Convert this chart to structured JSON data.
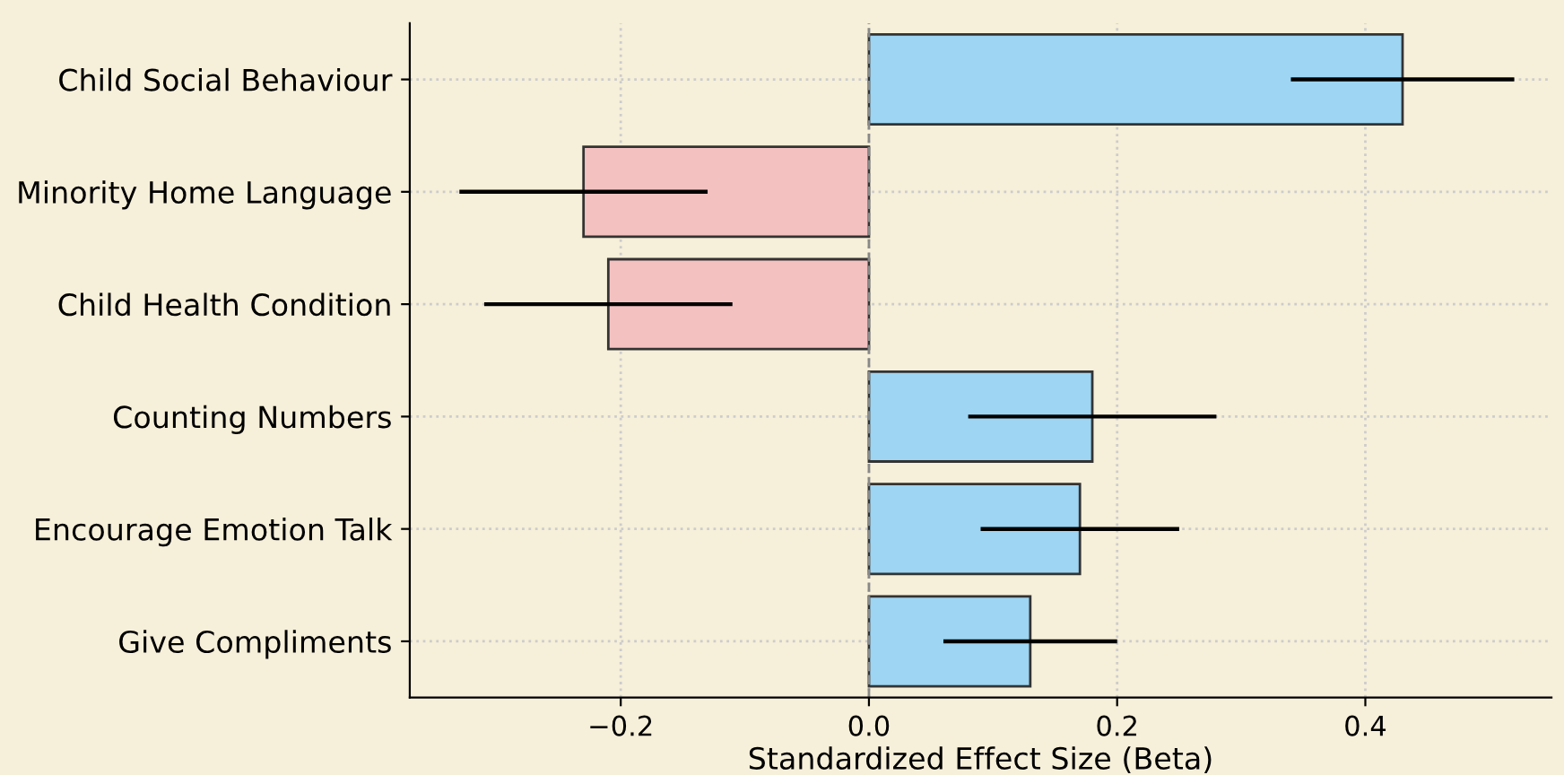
{
  "chart_data": {
    "type": "bar",
    "orientation": "horizontal",
    "xlabel": "Standardized Effect Size (Beta)",
    "categories": [
      "Child Social Behaviour",
      "Minority Home Language",
      "Child Health Condition",
      "Counting Numbers",
      "Encourage Emotion Talk",
      "Give Compliments"
    ],
    "values": [
      0.43,
      -0.23,
      -0.21,
      0.18,
      0.17,
      0.13
    ],
    "errors": [
      [
        0.34,
        0.52
      ],
      [
        -0.33,
        -0.13
      ],
      [
        -0.31,
        -0.11
      ],
      [
        0.08,
        0.28
      ],
      [
        0.09,
        0.25
      ],
      [
        0.06,
        0.2
      ]
    ],
    "colors": [
      "#9dd5f2",
      "#f4c1c1",
      "#f4c1c1",
      "#9dd5f2",
      "#9dd5f2",
      "#9dd5f2"
    ],
    "xlim": [
      -0.37,
      0.55
    ],
    "xticks": [
      {
        "value": -0.2,
        "label": "−0.2"
      },
      {
        "value": 0.0,
        "label": "0.0"
      },
      {
        "value": 0.2,
        "label": "0.2"
      },
      {
        "value": 0.4,
        "label": "0.4"
      }
    ],
    "ref_lines": [
      {
        "axis": "x",
        "value": 0,
        "color": "#888888",
        "line_style": "dashed"
      }
    ],
    "grid": true
  }
}
